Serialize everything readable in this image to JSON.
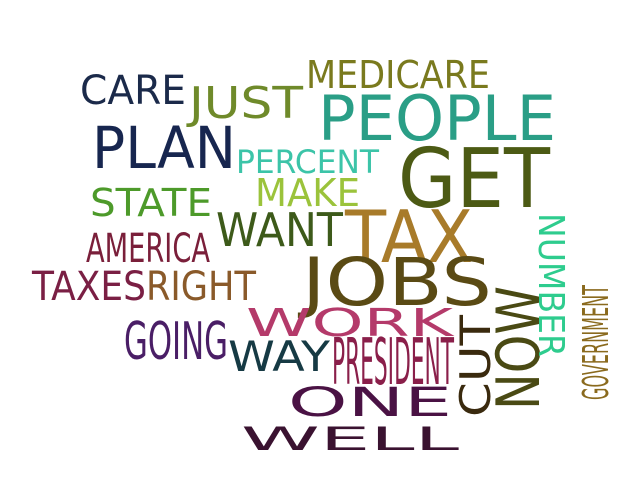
{
  "words": [
    {
      "id": "care",
      "text": "CARE",
      "color": "#1b2a4a"
    },
    {
      "id": "just",
      "text": "JUST",
      "color": "#6f8a2a"
    },
    {
      "id": "medicare",
      "text": "MEDICARE",
      "color": "#7a7a1e"
    },
    {
      "id": "people",
      "text": "PEOPLE",
      "color": "#2a9e86"
    },
    {
      "id": "plan",
      "text": "PLAN",
      "color": "#17264f"
    },
    {
      "id": "percent",
      "text": "PERCENT",
      "color": "#3cc4a8"
    },
    {
      "id": "get",
      "text": "GET",
      "color": "#4c5a14"
    },
    {
      "id": "make",
      "text": "MAKE",
      "color": "#9bc33b"
    },
    {
      "id": "state",
      "text": "STATE",
      "color": "#4d9a2a"
    },
    {
      "id": "want",
      "text": "WANT",
      "color": "#3d5a1a"
    },
    {
      "id": "tax",
      "text": "TAX",
      "color": "#a87b2a"
    },
    {
      "id": "america",
      "text": "AMERICA",
      "color": "#7a1f3a"
    },
    {
      "id": "taxes",
      "text": "TAXES",
      "color": "#7a1f44"
    },
    {
      "id": "right",
      "text": "RIGHT",
      "color": "#8a5a2a"
    },
    {
      "id": "jobs",
      "text": "JOBS",
      "color": "#5a4a14"
    },
    {
      "id": "going",
      "text": "GOING",
      "color": "#4a1e66"
    },
    {
      "id": "work",
      "text": "WORK",
      "color": "#b43a6a"
    },
    {
      "id": "way",
      "text": "WAY",
      "color": "#163a44"
    },
    {
      "id": "president",
      "text": "PRESIDENT",
      "color": "#8a1f4a"
    },
    {
      "id": "one",
      "text": "ONE",
      "color": "#4a1244"
    },
    {
      "id": "well",
      "text": "WELL",
      "color": "#3a1230"
    },
    {
      "id": "now",
      "text": "NOW",
      "color": "#4a4a14"
    },
    {
      "id": "cut",
      "text": "CUT",
      "color": "#3a2a0e"
    },
    {
      "id": "number",
      "text": "NUMBER",
      "color": "#2ecc8e"
    },
    {
      "id": "government",
      "text": "GOVERNMENT",
      "color": "#8a6a1e"
    }
  ]
}
